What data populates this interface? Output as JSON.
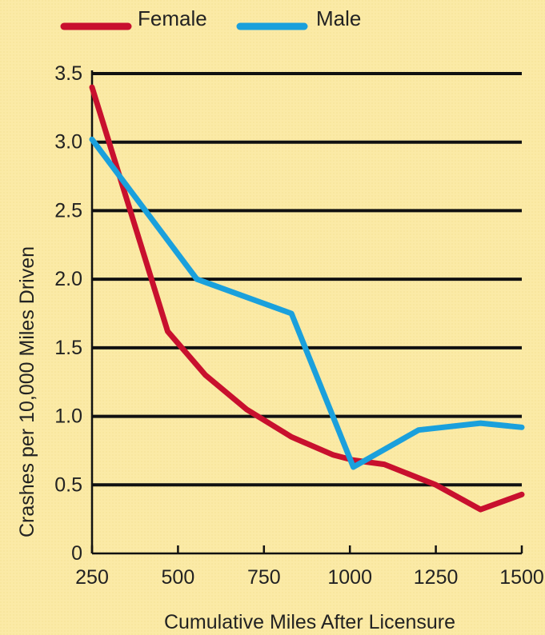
{
  "chart_data": {
    "type": "line",
    "xlabel": "Cumulative Miles After Licensure",
    "ylabel": "Crashes per 10,000 Miles Driven",
    "xlim": [
      250,
      1500
    ],
    "ylim": [
      0,
      3.5
    ],
    "xticks": [
      250,
      500,
      750,
      1000,
      1250,
      1500
    ],
    "yticks": [
      0,
      0.5,
      1.0,
      1.5,
      2.0,
      2.5,
      3.0,
      3.5
    ],
    "ytick_labels": [
      "0",
      "0.5",
      "1.0",
      "1.5",
      "2.0",
      "2.5",
      "3.0",
      "3.5"
    ],
    "grid": true,
    "legend_position": "top",
    "series": [
      {
        "name": "Female",
        "color": "#c8102e",
        "x": [
          250,
          470,
          580,
          700,
          830,
          950,
          1010,
          1100,
          1250,
          1380,
          1500
        ],
        "y": [
          3.4,
          1.62,
          1.3,
          1.05,
          0.85,
          0.72,
          0.68,
          0.65,
          0.5,
          0.32,
          0.43
        ]
      },
      {
        "name": "Male",
        "color": "#1aa0dc",
        "x": [
          250,
          555,
          830,
          1010,
          1200,
          1380,
          1500
        ],
        "y": [
          3.02,
          2.0,
          1.75,
          0.63,
          0.9,
          0.95,
          0.92
        ]
      }
    ]
  }
}
